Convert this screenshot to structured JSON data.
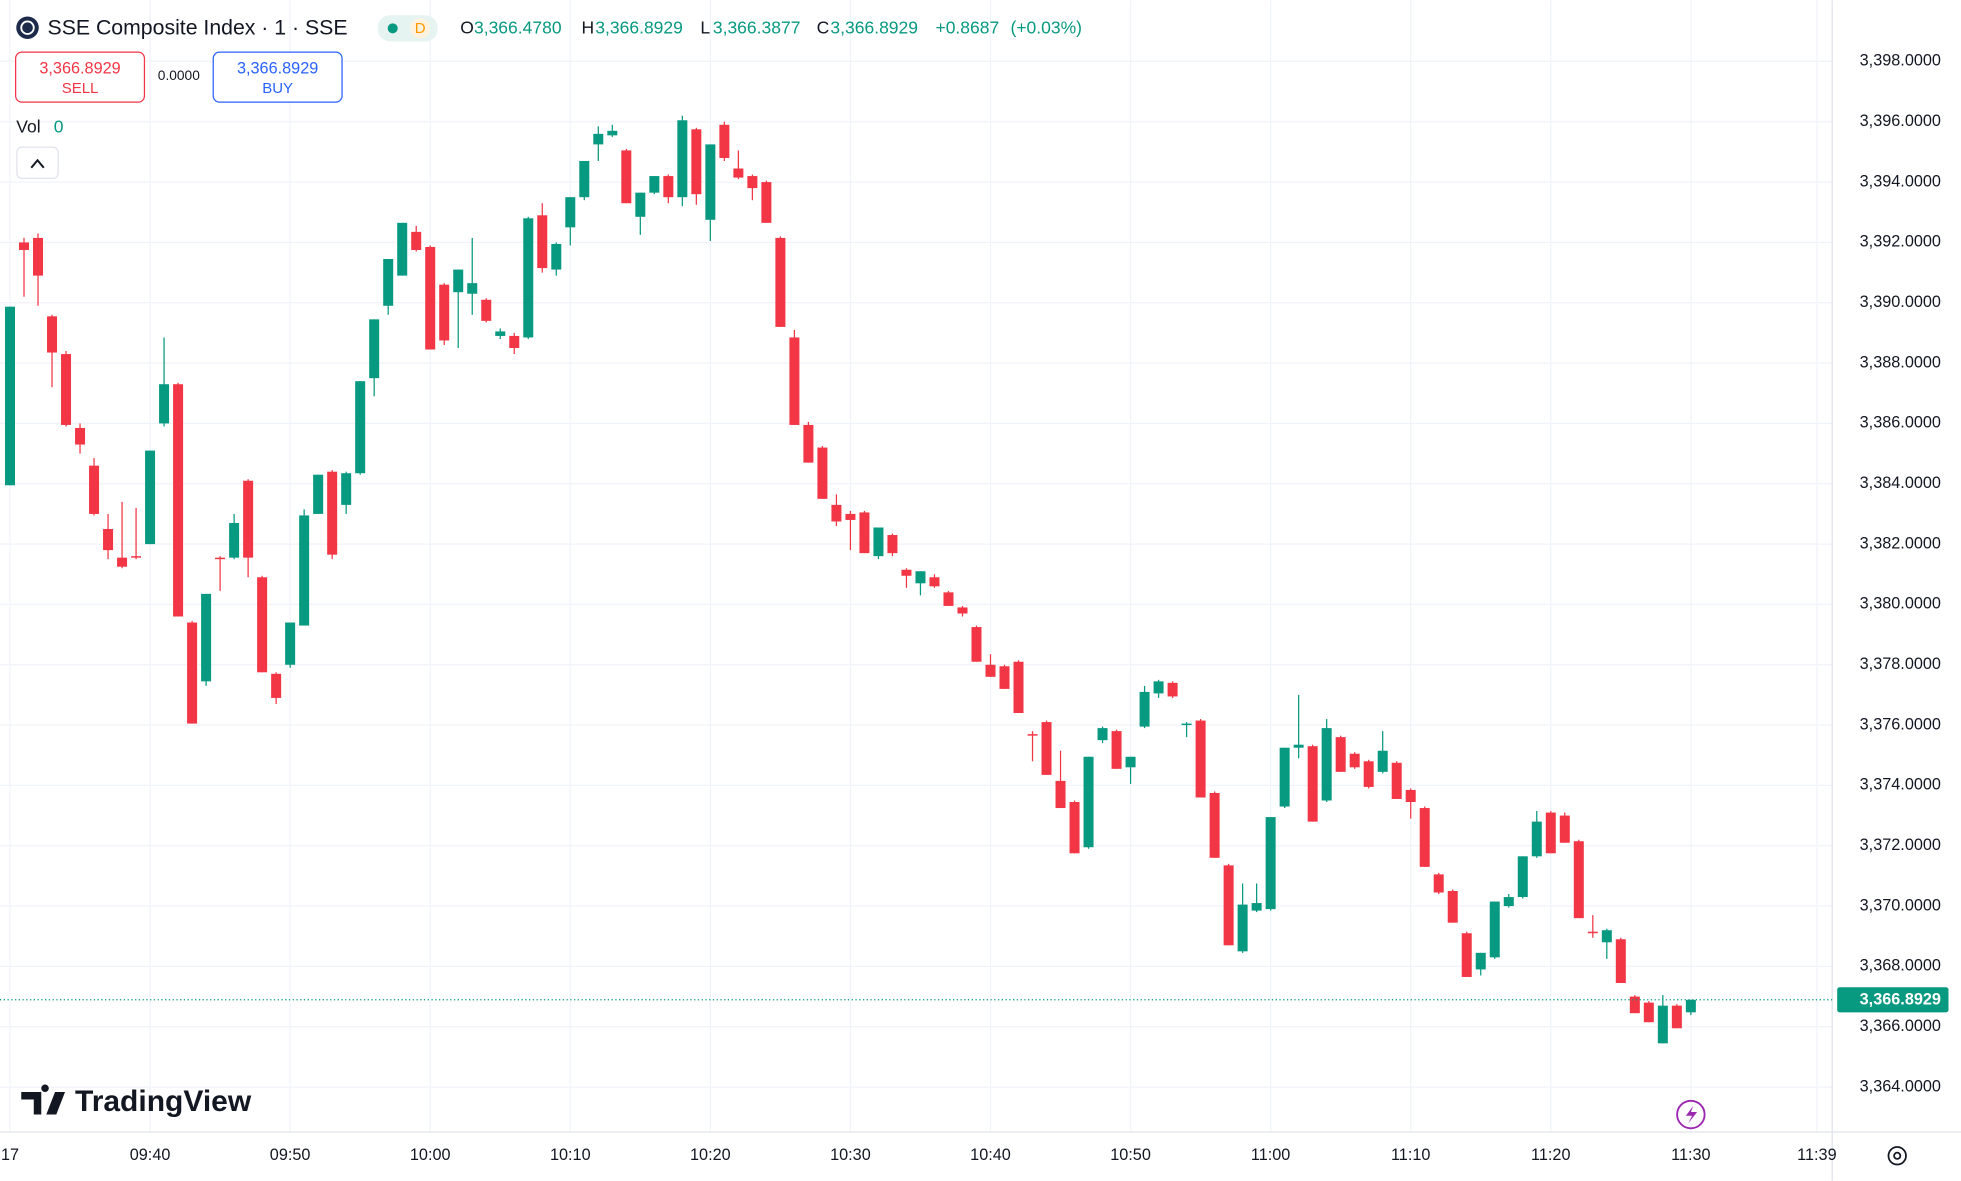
{
  "chart_data": {
    "type": "candlestick",
    "title": "SSE Composite Index · 1 · SSE",
    "interval_badge": "D",
    "ohlc_header": {
      "o_label": "O",
      "o": "3,366.4780",
      "h_label": "H",
      "h": "3,366.8929",
      "l_label": "L",
      "l": "3,366.3877",
      "c_label": "C",
      "c": "3,366.8929",
      "change": "+0.8687",
      "change_pct": "(+0.03%)"
    },
    "trade": {
      "sell_price": "3,366.8929",
      "sell": "SELL",
      "spread": "0.0000",
      "buy_price": "3,366.8929",
      "buy": "BUY"
    },
    "volume": {
      "label": "Vol",
      "value": "0"
    },
    "logo": "TradingView",
    "up_color": "#089981",
    "down_color": "#f23645",
    "grid": true,
    "last_price": {
      "value": 3366.8929,
      "label": "3,366.8929"
    },
    "xlim": [
      -0.714,
      130.09
    ],
    "xticks": [
      {
        "value": 0,
        "label": "17"
      },
      {
        "value": 10,
        "label": "09:40"
      },
      {
        "value": 20,
        "label": "09:50"
      },
      {
        "value": 30,
        "label": "10:00"
      },
      {
        "value": 40,
        "label": "10:10"
      },
      {
        "value": 50,
        "label": "10:20"
      },
      {
        "value": 60,
        "label": "10:30"
      },
      {
        "value": 70,
        "label": "10:40"
      },
      {
        "value": 80,
        "label": "10:50"
      },
      {
        "value": 90,
        "label": "11:00"
      },
      {
        "value": 100,
        "label": "11:10"
      },
      {
        "value": 110,
        "label": "11:20"
      },
      {
        "value": 120,
        "label": "11:30"
      },
      {
        "value": 129,
        "label": "11:39"
      }
    ],
    "ylim": [
      3362.51,
      3400.03
    ],
    "yticks": [
      {
        "value": 3364,
        "label": "3,364.0000"
      },
      {
        "value": 3366,
        "label": "3,366.0000"
      },
      {
        "value": 3368,
        "label": "3,368.0000"
      },
      {
        "value": 3370,
        "label": "3,370.0000"
      },
      {
        "value": 3372,
        "label": "3,372.0000"
      },
      {
        "value": 3374,
        "label": "3,374.0000"
      },
      {
        "value": 3376,
        "label": "3,376.0000"
      },
      {
        "value": 3378,
        "label": "3,378.0000"
      },
      {
        "value": 3380,
        "label": "3,380.0000"
      },
      {
        "value": 3382,
        "label": "3,382.0000"
      },
      {
        "value": 3384,
        "label": "3,384.0000"
      },
      {
        "value": 3386,
        "label": "3,386.0000"
      },
      {
        "value": 3388,
        "label": "3,388.0000"
      },
      {
        "value": 3390,
        "label": "3,390.0000"
      },
      {
        "value": 3392,
        "label": "3,392.0000"
      },
      {
        "value": 3394,
        "label": "3,394.0000"
      },
      {
        "value": 3396,
        "label": "3,396.0000"
      },
      {
        "value": 3398,
        "label": "3,398.0000"
      }
    ],
    "candles": [
      [
        3383.95,
        3389.87,
        3383.95,
        3389.87
      ],
      [
        3392.0,
        3392.15,
        3390.2,
        3391.75
      ],
      [
        3392.15,
        3392.3,
        3389.9,
        3390.9
      ],
      [
        3389.55,
        3389.6,
        3387.2,
        3388.35
      ],
      [
        3388.3,
        3388.4,
        3385.9,
        3385.95
      ],
      [
        3385.85,
        3386.0,
        3385.0,
        3385.3
      ],
      [
        3384.6,
        3384.85,
        3382.95,
        3383.0
      ],
      [
        3382.5,
        3383.0,
        3381.5,
        3381.8
      ],
      [
        3381.55,
        3383.4,
        3381.2,
        3381.25
      ],
      [
        3381.6,
        3383.2,
        3381.5,
        3381.55
      ],
      [
        3382.0,
        3385.1,
        3382.0,
        3385.1
      ],
      [
        3386.0,
        3388.85,
        3385.9,
        3387.3
      ],
      [
        3387.3,
        3387.35,
        3379.6,
        3379.6
      ],
      [
        3379.4,
        3379.45,
        3376.05,
        3376.05
      ],
      [
        3377.45,
        3380.35,
        3377.3,
        3380.35
      ],
      [
        3381.55,
        3381.6,
        3380.45,
        3381.5
      ],
      [
        3381.55,
        3383.0,
        3381.5,
        3382.7
      ],
      [
        3384.1,
        3384.15,
        3380.9,
        3381.55
      ],
      [
        3380.9,
        3380.95,
        3377.75,
        3377.75
      ],
      [
        3377.7,
        3377.75,
        3376.7,
        3376.9
      ],
      [
        3378.0,
        3379.4,
        3377.9,
        3379.4
      ],
      [
        3379.3,
        3383.15,
        3379.3,
        3382.95
      ],
      [
        3383.0,
        3384.3,
        3383.0,
        3384.3
      ],
      [
        3384.4,
        3384.45,
        3381.5,
        3381.65
      ],
      [
        3383.3,
        3384.4,
        3383.0,
        3384.35
      ],
      [
        3384.35,
        3387.4,
        3384.3,
        3387.4
      ],
      [
        3387.5,
        3389.45,
        3386.9,
        3389.45
      ],
      [
        3389.9,
        3391.45,
        3389.6,
        3391.45
      ],
      [
        3390.9,
        3392.65,
        3390.9,
        3392.65
      ],
      [
        3392.35,
        3392.55,
        3391.7,
        3391.75
      ],
      [
        3391.85,
        3391.9,
        3388.45,
        3388.45
      ],
      [
        3390.6,
        3390.65,
        3388.6,
        3388.75
      ],
      [
        3390.35,
        3391.1,
        3388.5,
        3391.1
      ],
      [
        3390.3,
        3392.15,
        3389.6,
        3390.65
      ],
      [
        3390.1,
        3390.15,
        3389.35,
        3389.4
      ],
      [
        3388.9,
        3389.15,
        3388.8,
        3389.05
      ],
      [
        3388.9,
        3389.0,
        3388.3,
        3388.5
      ],
      [
        3388.85,
        3392.85,
        3388.8,
        3392.8
      ],
      [
        3392.9,
        3393.3,
        3391.0,
        3391.15
      ],
      [
        3391.1,
        3392.0,
        3390.9,
        3391.95
      ],
      [
        3392.5,
        3393.5,
        3391.9,
        3393.5
      ],
      [
        3393.5,
        3394.7,
        3393.4,
        3394.7
      ],
      [
        3395.25,
        3395.85,
        3394.7,
        3395.6
      ],
      [
        3395.55,
        3395.9,
        3395.5,
        3395.7
      ],
      [
        3395.05,
        3395.1,
        3393.3,
        3393.3
      ],
      [
        3392.85,
        3393.65,
        3392.25,
        3393.65
      ],
      [
        3393.65,
        3394.2,
        3393.6,
        3394.2
      ],
      [
        3394.2,
        3394.25,
        3393.3,
        3393.5
      ],
      [
        3393.5,
        3396.2,
        3393.2,
        3396.05
      ],
      [
        3395.75,
        3395.8,
        3393.25,
        3393.6
      ],
      [
        3392.75,
        3395.25,
        3392.05,
        3395.25
      ],
      [
        3395.9,
        3396.0,
        3394.7,
        3394.8
      ],
      [
        3394.45,
        3395.05,
        3394.1,
        3394.15
      ],
      [
        3394.2,
        3394.25,
        3393.4,
        3393.8
      ],
      [
        3394.0,
        3394.05,
        3392.65,
        3392.65
      ],
      [
        3392.15,
        3392.2,
        3389.2,
        3389.2
      ],
      [
        3388.85,
        3389.1,
        3385.95,
        3385.95
      ],
      [
        3385.95,
        3386.05,
        3384.7,
        3384.7
      ],
      [
        3385.2,
        3385.25,
        3383.5,
        3383.5
      ],
      [
        3383.3,
        3383.65,
        3382.6,
        3382.75
      ],
      [
        3383.0,
        3383.1,
        3381.8,
        3382.8
      ],
      [
        3383.05,
        3383.1,
        3381.7,
        3381.7
      ],
      [
        3381.6,
        3382.55,
        3381.5,
        3382.55
      ],
      [
        3382.3,
        3382.35,
        3381.6,
        3381.7
      ],
      [
        3381.15,
        3381.2,
        3380.55,
        3380.95
      ],
      [
        3380.7,
        3381.1,
        3380.3,
        3381.1
      ],
      [
        3380.9,
        3381.0,
        3380.55,
        3380.6
      ],
      [
        3380.4,
        3380.45,
        3379.95,
        3379.95
      ],
      [
        3379.9,
        3379.95,
        3379.6,
        3379.7
      ],
      [
        3379.25,
        3379.3,
        3378.1,
        3378.1
      ],
      [
        3378.0,
        3378.35,
        3377.6,
        3377.6
      ],
      [
        3377.95,
        3378.0,
        3377.2,
        3377.2
      ],
      [
        3378.1,
        3378.15,
        3376.4,
        3376.4
      ],
      [
        3375.7,
        3375.8,
        3374.8,
        3375.65
      ],
      [
        3376.1,
        3376.15,
        3374.35,
        3374.35
      ],
      [
        3374.15,
        3375.15,
        3373.25,
        3373.25
      ],
      [
        3373.45,
        3373.5,
        3371.75,
        3371.75
      ],
      [
        3371.95,
        3374.95,
        3371.9,
        3374.95
      ],
      [
        3375.5,
        3375.95,
        3375.4,
        3375.9
      ],
      [
        3375.8,
        3375.85,
        3374.55,
        3374.55
      ],
      [
        3374.6,
        3374.95,
        3374.05,
        3374.95
      ],
      [
        3375.95,
        3377.3,
        3375.9,
        3377.1
      ],
      [
        3377.05,
        3377.5,
        3376.9,
        3377.45
      ],
      [
        3377.4,
        3377.45,
        3376.9,
        3376.95
      ],
      [
        3376.0,
        3376.1,
        3375.6,
        3376.05
      ],
      [
        3376.15,
        3376.2,
        3373.6,
        3373.6
      ],
      [
        3373.75,
        3373.8,
        3371.6,
        3371.6
      ],
      [
        3371.35,
        3371.4,
        3368.7,
        3368.7
      ],
      [
        3368.5,
        3370.75,
        3368.45,
        3370.05
      ],
      [
        3369.85,
        3370.75,
        3369.8,
        3370.1
      ],
      [
        3369.9,
        3372.95,
        3369.85,
        3372.95
      ],
      [
        3373.3,
        3375.25,
        3373.25,
        3375.25
      ],
      [
        3375.25,
        3377.0,
        3374.9,
        3375.35
      ],
      [
        3375.3,
        3375.35,
        3372.8,
        3372.8
      ],
      [
        3373.5,
        3376.2,
        3373.45,
        3375.9
      ],
      [
        3375.6,
        3375.65,
        3374.45,
        3374.45
      ],
      [
        3375.05,
        3375.1,
        3374.55,
        3374.6
      ],
      [
        3374.8,
        3374.85,
        3373.9,
        3373.95
      ],
      [
        3374.45,
        3375.8,
        3374.4,
        3375.15
      ],
      [
        3374.75,
        3374.8,
        3373.55,
        3373.55
      ],
      [
        3373.85,
        3373.9,
        3372.9,
        3373.45
      ],
      [
        3373.25,
        3373.3,
        3371.3,
        3371.3
      ],
      [
        3371.05,
        3371.1,
        3370.4,
        3370.45
      ],
      [
        3370.5,
        3370.55,
        3369.45,
        3369.45
      ],
      [
        3369.1,
        3369.15,
        3367.65,
        3367.65
      ],
      [
        3367.9,
        3368.45,
        3367.7,
        3368.45
      ],
      [
        3368.3,
        3370.15,
        3368.25,
        3370.15
      ],
      [
        3370.0,
        3370.4,
        3369.95,
        3370.3
      ],
      [
        3370.3,
        3371.65,
        3370.25,
        3371.65
      ],
      [
        3371.65,
        3373.15,
        3371.6,
        3372.8
      ],
      [
        3373.1,
        3373.15,
        3371.75,
        3371.75
      ],
      [
        3373.0,
        3373.1,
        3372.1,
        3372.1
      ],
      [
        3372.15,
        3372.2,
        3369.6,
        3369.6
      ],
      [
        3369.15,
        3369.7,
        3368.95,
        3369.1
      ],
      [
        3368.8,
        3369.25,
        3368.25,
        3369.2
      ],
      [
        3368.9,
        3368.95,
        3367.45,
        3367.45
      ],
      [
        3367.0,
        3367.05,
        3366.45,
        3366.45
      ],
      [
        3366.8,
        3366.85,
        3366.15,
        3366.15
      ],
      [
        3365.45,
        3367.05,
        3365.45,
        3366.7
      ],
      [
        3366.7,
        3366.75,
        3365.95,
        3365.95
      ],
      [
        3366.478,
        3366.8929,
        3366.3877,
        3366.8929
      ]
    ]
  }
}
